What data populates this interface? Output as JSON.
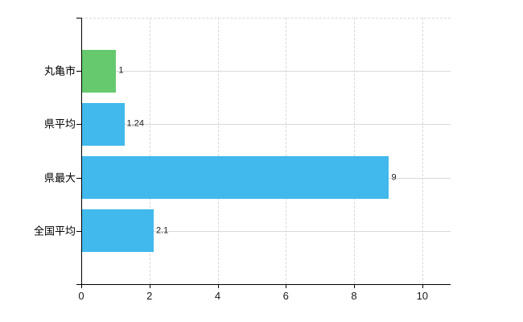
{
  "chart_data": {
    "type": "bar",
    "orientation": "horizontal",
    "categories": [
      "丸亀市",
      "県平均",
      "県最大",
      "全国平均"
    ],
    "values": [
      1,
      1.24,
      9,
      2.1
    ],
    "value_labels": [
      "1",
      "1.24",
      "9",
      "2.1"
    ],
    "bar_colors": [
      "#66c96e",
      "#41b9ec",
      "#41b9ec",
      "#41b9ec"
    ],
    "xticks": [
      0,
      2,
      4,
      6,
      8,
      10
    ],
    "xlim": [
      0,
      10.83
    ],
    "grid": "both",
    "legend": "none",
    "colors": {
      "axis": "#000000",
      "gridline": "#d9d9d9",
      "background": "#ffffff",
      "category_text": "#000000",
      "value_text": "#1a1a1a"
    }
  }
}
